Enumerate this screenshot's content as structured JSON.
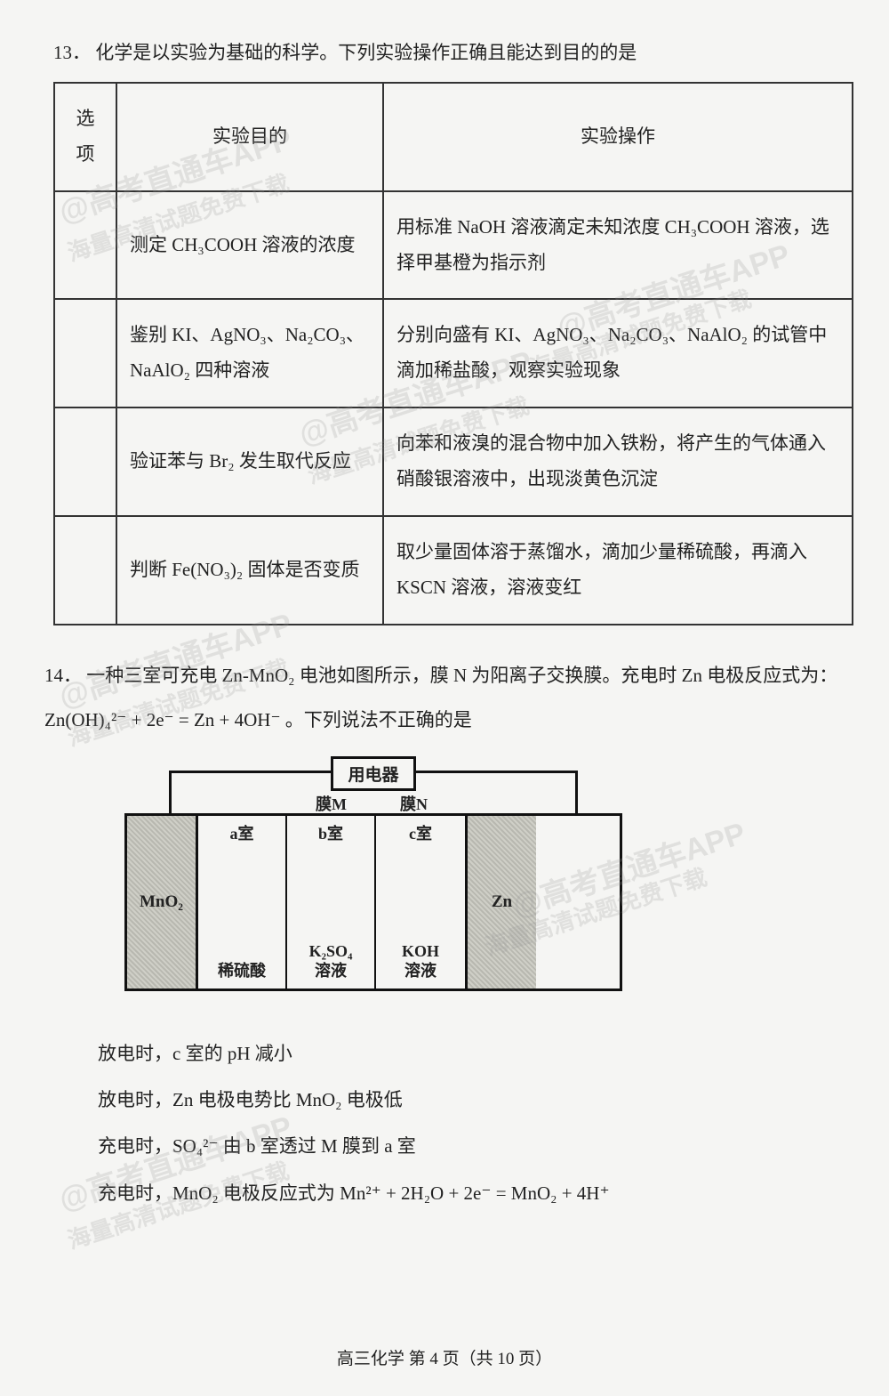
{
  "q13": {
    "number": "13．",
    "intro": "化学是以实验为基础的科学。下列实验操作正确且能达到目的的是",
    "headers": {
      "option": "选项",
      "purpose": "实验目的",
      "operation": "实验操作"
    },
    "rows": [
      {
        "purpose": "测定 CH₃COOH 溶液的浓度",
        "operation": "用标准 NaOH 溶液滴定未知浓度 CH₃COOH 溶液，选择甲基橙为指示剂"
      },
      {
        "purpose": "鉴别 KI、AgNO₃、Na₂CO₃、NaAlO₂ 四种溶液",
        "operation": "分别向盛有 KI、AgNO₃、Na₂CO₃、NaAlO₂ 的试管中滴加稀盐酸，观察实验现象"
      },
      {
        "purpose": "验证苯与 Br₂ 发生取代反应",
        "operation": "向苯和液溴的混合物中加入铁粉，将产生的气体通入硝酸银溶液中，出现淡黄色沉淀"
      },
      {
        "purpose": "判断 Fe(NO₃)₂ 固体是否变质",
        "operation": "取少量固体溶于蒸馏水，滴加少量稀硫酸，再滴入 KSCN 溶液，溶液变红"
      }
    ]
  },
  "q14": {
    "number": "14．",
    "intro_a": "一种三室可充电 Zn-MnO₂ 电池如图所示，膜 N 为阳离子交换膜。充电时 Zn 电极反应式为：",
    "equation": "Zn(OH)₄²⁻ + 2e⁻ = Zn + 4OH⁻ 。下列说法不正确的是",
    "diagram": {
      "device": "用电器",
      "membraneM": "膜M",
      "membraneN": "膜N",
      "left_electrode": "MnO₂",
      "right_electrode": "Zn",
      "chambers": [
        {
          "top": "a室",
          "bottom": "稀硫酸"
        },
        {
          "top": "b室",
          "bottom": "K₂SO₄\n溶液"
        },
        {
          "top": "c室",
          "bottom": "KOH\n溶液"
        }
      ]
    },
    "options": [
      "放电时，c 室的 pH 减小",
      "放电时，Zn 电极电势比 MnO₂ 电极低",
      "充电时，SO₄²⁻ 由 b 室透过 M 膜到 a 室",
      "充电时，MnO₂ 电极反应式为 Mn²⁺ + 2H₂O + 2e⁻ = MnO₂ + 4H⁺"
    ]
  },
  "watermarks": {
    "line1": "@高考直通车APP",
    "line2": "海量高清试题免费下载"
  },
  "footer": "高三化学  第 4 页（共 10 页）"
}
